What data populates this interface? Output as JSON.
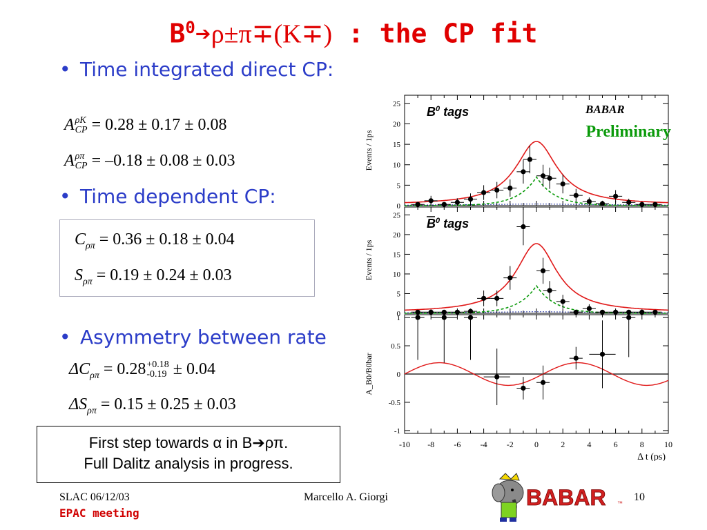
{
  "slide": {
    "title_prefix": "B",
    "title_sup": "0",
    "title_arrow": "➔",
    "title_decay": "ρ±π∓(K∓)",
    "title_suffix": " : the CP fit",
    "bullet1": "Time integrated direct CP:",
    "bullet2": "Time dependent CP:",
    "bullet3": "Asymmetry between rate",
    "eq1": {
      "lhs_main": "A",
      "lhs_sup": "ρK",
      "lhs_sub": "CP",
      "rhs": "= 0.28 ± 0.17 ± 0.08"
    },
    "eq2": {
      "lhs_main": "A",
      "lhs_sup": "ρπ",
      "lhs_sub": "CP",
      "rhs": "= –0.18 ± 0.08 ± 0.03"
    },
    "eq3": {
      "lhs_main": "C",
      "lhs_sub": "ρπ",
      "rhs": "= 0.36 ± 0.18 ± 0.04"
    },
    "eq4": {
      "lhs_main": "S",
      "lhs_sub": "ρπ",
      "rhs": "= 0.19 ± 0.24 ± 0.03"
    },
    "eq5": {
      "lhs_main": "ΔC",
      "lhs_sub": "ρπ",
      "rhs_a": "= 0.28",
      "sup": "+0.18",
      "sub": "-0.19",
      "rhs_b": " ± 0.04"
    },
    "eq6": {
      "lhs_main": "ΔS",
      "lhs_sub": "ρπ",
      "rhs": "= 0.15 ± 0.25 ± 0.03"
    },
    "callout_line1": "First step towards α in B➔ρπ.",
    "callout_line2": "Full Dalitz analysis in progress.",
    "footer_left": "SLAC 06/12/03",
    "footer_left2": "EPAC meeting",
    "footer_center": "Marcello A. Giorgi",
    "footer_right": "10",
    "logo_text": "BABAR",
    "logo_tm": "™"
  },
  "chart_data": [
    {
      "type": "scatter",
      "panel": "B0 tags",
      "label_main": "B",
      "label_sup": "0",
      "label_suffix": " tags",
      "ylabel": "Events / 1ps",
      "ylim": [
        0,
        27
      ],
      "yticks": [
        0,
        5,
        10,
        15,
        20,
        25
      ],
      "xlim": [
        -10,
        10
      ],
      "watermark": "BABAR",
      "annotation": "Preliminary",
      "points": [
        {
          "x": -9,
          "y": 0.3,
          "e": 0.5
        },
        {
          "x": -8,
          "y": 1.2,
          "e": 1.2
        },
        {
          "x": -7,
          "y": 0.3,
          "e": 0.5
        },
        {
          "x": -6,
          "y": 0.8,
          "e": 1.0
        },
        {
          "x": -5,
          "y": 1.6,
          "e": 1.4
        },
        {
          "x": -4,
          "y": 3.2,
          "e": 1.8
        },
        {
          "x": -3,
          "y": 3.8,
          "e": 2.0
        },
        {
          "x": -2,
          "y": 4.3,
          "e": 2.1
        },
        {
          "x": -1,
          "y": 8.3,
          "e": 2.9
        },
        {
          "x": -0.5,
          "y": 11.3,
          "e": 3.4
        },
        {
          "x": 0.5,
          "y": 7.3,
          "e": 2.7
        },
        {
          "x": 1,
          "y": 6.7,
          "e": 2.6
        },
        {
          "x": 2,
          "y": 5.3,
          "e": 2.3
        },
        {
          "x": 3,
          "y": 2.5,
          "e": 1.6
        },
        {
          "x": 4,
          "y": 1.0,
          "e": 1.0
        },
        {
          "x": 5,
          "y": 0.5,
          "e": 0.7
        },
        {
          "x": 6,
          "y": 2.3,
          "e": 1.5
        },
        {
          "x": 7,
          "y": 0.8,
          "e": 0.9
        },
        {
          "x": 8,
          "y": 0.3,
          "e": 0.5
        },
        {
          "x": 9,
          "y": 0.3,
          "e": 0.5
        }
      ],
      "curve_total_peak": 15.5,
      "curve_signal_peak": 7.0,
      "curve_background_peak": 0.4
    },
    {
      "type": "scatter",
      "panel": "anti-B0 tags",
      "label_main": "B",
      "label_sup": "0",
      "label_suffix": " tags",
      "ylabel": "Events / 1ps",
      "ylim": [
        0,
        27
      ],
      "yticks": [
        0,
        5,
        10,
        15,
        20,
        25
      ],
      "xlim": [
        -10,
        10
      ],
      "points": [
        {
          "x": -9,
          "y": 0.3,
          "e": 0.5
        },
        {
          "x": -8,
          "y": 0.3,
          "e": 0.5
        },
        {
          "x": -7,
          "y": 0.3,
          "e": 0.5
        },
        {
          "x": -6,
          "y": 0.3,
          "e": 0.5
        },
        {
          "x": -5,
          "y": 0.5,
          "e": 0.7
        },
        {
          "x": -4,
          "y": 3.8,
          "e": 2.0
        },
        {
          "x": -3,
          "y": 3.8,
          "e": 2.0
        },
        {
          "x": -2,
          "y": 9.0,
          "e": 3.0
        },
        {
          "x": -1,
          "y": 22.0,
          "e": 4.7
        },
        {
          "x": 0.5,
          "y": 10.8,
          "e": 3.3
        },
        {
          "x": 1,
          "y": 5.8,
          "e": 2.4
        },
        {
          "x": 2,
          "y": 3.0,
          "e": 1.7
        },
        {
          "x": 3,
          "y": 0.3,
          "e": 0.5
        },
        {
          "x": 4,
          "y": 1.2,
          "e": 1.1
        },
        {
          "x": 5,
          "y": 0.3,
          "e": 0.5
        },
        {
          "x": 6,
          "y": 0.3,
          "e": 0.5
        },
        {
          "x": 7,
          "y": 0.3,
          "e": 0.5
        },
        {
          "x": 8,
          "y": 0.3,
          "e": 0.5
        },
        {
          "x": 9,
          "y": 0.3,
          "e": 0.5
        }
      ],
      "curve_total_peak": 17.5,
      "curve_signal_peak": 7.0,
      "curve_background_peak": 0.4
    },
    {
      "type": "scatter",
      "panel": "asymmetry",
      "ylabel": "A_B0/B0bar",
      "xlabel": "Δ t (ps)",
      "ylim": [
        -1.05,
        1.05
      ],
      "yticks": [
        -1,
        -0.5,
        0,
        0.5,
        1
      ],
      "ytick_labels": [
        "-1",
        "-0.5",
        "0",
        "0.5",
        "1"
      ],
      "xlim": [
        -10,
        10
      ],
      "xticks": [
        -10,
        -8,
        -6,
        -4,
        -2,
        0,
        2,
        4,
        6,
        8,
        10
      ],
      "points": [
        {
          "x": -9,
          "y": 1.0,
          "e": 0.75,
          "xe": 0.5
        },
        {
          "x": -7,
          "y": 1.0,
          "e": 0.8,
          "xe": 1.0
        },
        {
          "x": -5,
          "y": 1.0,
          "e": 0.75,
          "xe": 0.5
        },
        {
          "x": -3,
          "y": -0.05,
          "e": 0.5,
          "xe": 1.0
        },
        {
          "x": -1,
          "y": -0.25,
          "e": 0.2,
          "xe": 0.5
        },
        {
          "x": 0.5,
          "y": -0.15,
          "e": 0.3,
          "xe": 0.5
        },
        {
          "x": 3,
          "y": 0.28,
          "e": 0.2,
          "xe": 0.5
        },
        {
          "x": 5,
          "y": 0.35,
          "e": 0.6,
          "xe": 1.0
        },
        {
          "x": 7,
          "y": 1.0,
          "e": 0.7,
          "xe": 0.5
        }
      ],
      "curve": {
        "offset": 0.0,
        "amp": 0.2,
        "period": 10.5,
        "phase": 0.5
      }
    }
  ],
  "colors": {
    "title": "#e00000",
    "bullet": "#2b3cc8",
    "preliminary": "#0a9a0a",
    "fit_total": "#e01818",
    "fit_signal": "#0a9a0a",
    "fit_bkg": "#2030a0",
    "logo": "#d02020"
  }
}
